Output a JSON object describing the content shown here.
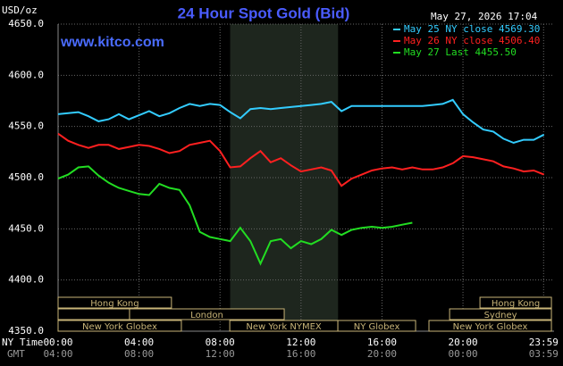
{
  "chart_data": {
    "type": "line",
    "title": "24 Hour Spot Gold (Bid)",
    "watermark": "www.kitco.com",
    "timestamp": "May 27, 2026 17:04",
    "y_axis_label": "USD/oz",
    "x_axis_labels": [
      "NY Time",
      "GMT"
    ],
    "x": [
      0,
      0.5,
      1,
      1.5,
      2,
      2.5,
      3,
      3.5,
      4,
      4.5,
      5,
      5.5,
      6,
      6.5,
      7,
      7.5,
      8,
      8.5,
      9,
      9.5,
      10,
      10.5,
      11,
      11.5,
      12,
      12.5,
      13,
      13.5,
      14,
      14.5,
      15,
      15.5,
      16,
      16.5,
      17,
      17.5,
      18,
      18.5,
      19,
      19.5,
      20,
      20.5,
      21,
      21.5,
      22,
      22.5,
      23,
      23.5,
      24
    ],
    "series": [
      {
        "name": "May 25 NY close 4569.30",
        "color": "#33ccff",
        "values": [
          4562,
          4563,
          4564,
          4560,
          4555,
          4557,
          4562,
          4557,
          4561,
          4565,
          4560,
          4563,
          4568,
          4572,
          4570,
          4572,
          4571,
          4564,
          4558,
          4567,
          4568,
          4567,
          4568,
          4569,
          4570,
          4571,
          4572,
          4574,
          4565,
          4570,
          4570,
          4570,
          4570,
          4570,
          4570,
          4570,
          4570,
          4571,
          4572,
          4576,
          4562,
          4554,
          4547,
          4545,
          4538,
          4534,
          4537,
          4537,
          4542
        ]
      },
      {
        "name": "May 26 NY close 4506.40",
        "color": "#ff2020",
        "values": [
          4543,
          4536,
          4532,
          4529,
          4532,
          4532,
          4528,
          4530,
          4532,
          4531,
          4528,
          4524,
          4526,
          4532,
          4534,
          4536,
          4526,
          4510,
          4511,
          4519,
          4526,
          4515,
          4519,
          4512,
          4506,
          4508,
          4510,
          4507,
          4492,
          4499,
          4503,
          4507,
          4509,
          4510,
          4508,
          4510,
          4508,
          4508,
          4510,
          4514,
          4521,
          4520,
          4518,
          4516,
          4511,
          4509,
          4506,
          4507,
          4503
        ]
      },
      {
        "name": "May 27 Last 4455.50",
        "color": "#22dd22",
        "values": [
          4499,
          4503,
          4510,
          4511,
          4502,
          4495,
          4490,
          4487,
          4484,
          4483,
          4494,
          4490,
          4488,
          4473,
          4447,
          4442,
          4440,
          4438,
          4451,
          4438,
          4416,
          4438,
          4440,
          4431,
          4438,
          4435,
          4440,
          4449,
          4444,
          4449,
          4451,
          4452,
          4451,
          4452,
          4454,
          4456,
          null,
          null,
          null,
          null,
          null,
          null,
          null,
          null,
          null,
          null,
          null,
          null,
          null
        ]
      }
    ],
    "xlim": [
      0,
      24.5
    ],
    "ylim": [
      4350,
      4650
    ],
    "yticks": [
      {
        "value": 4350,
        "label": "4350.0"
      },
      {
        "value": 4400,
        "label": "4400.0"
      },
      {
        "value": 4450,
        "label": "4450.0"
      },
      {
        "value": 4500,
        "label": "4500.0"
      },
      {
        "value": 4550,
        "label": "4550.0"
      },
      {
        "value": 4600,
        "label": "4600.0"
      },
      {
        "value": 4650,
        "label": "4650.0"
      }
    ],
    "xticks": [
      {
        "value": 0,
        "label": "00:00"
      },
      {
        "value": 4,
        "label": "04:00"
      },
      {
        "value": 8,
        "label": "08:00"
      },
      {
        "value": 12,
        "label": "12:00"
      },
      {
        "value": 16,
        "label": "16:00"
      },
      {
        "value": 20,
        "label": "20:00"
      },
      {
        "value": 23.983,
        "label": "23:59"
      }
    ],
    "gmt_tick_labels": [
      "04:00",
      "08:00",
      "12:00",
      "16:00",
      "20:00",
      "00:00",
      "03:59"
    ],
    "grid": true,
    "nymex_shade": [
      8.5,
      13.83
    ],
    "session_rows": [
      [
        {
          "label": "Hong Kong",
          "start": 0,
          "end": 5.6
        },
        {
          "label": "Hong Kong",
          "start": 20.84,
          "end": 24.37
        }
      ],
      [
        {
          "label": null,
          "start": 0,
          "end": 3.53
        },
        {
          "label": "London",
          "start": 3.53,
          "end": 11.17
        },
        {
          "label": "Sydney",
          "start": 19.34,
          "end": 24.37
        }
      ],
      [
        {
          "label": "New York Globex",
          "start": 0,
          "end": 6.09
        },
        {
          "label": "New York NYMEX",
          "start": 8.48,
          "end": 13.82
        },
        {
          "label": "NY Globex",
          "start": 13.82,
          "end": 17.66
        },
        {
          "label": "New York Globex",
          "start": 18.32,
          "end": 24.37
        }
      ]
    ]
  }
}
